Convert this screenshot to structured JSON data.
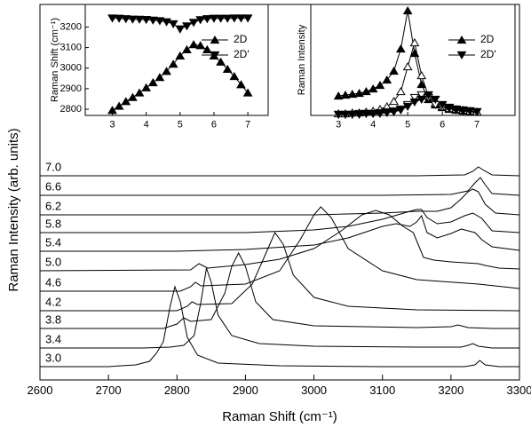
{
  "chart_data": [
    {
      "type": "line",
      "xlabel": "Raman Shift (cm⁻¹)",
      "ylabel": "Raman Intensity (arb. units)",
      "xlim": [
        2600,
        3300
      ],
      "xticks": [
        2600,
        2700,
        2800,
        2900,
        3000,
        3100,
        3200,
        3300
      ],
      "ylim": [
        0,
        423
      ],
      "color": "#000000",
      "series": [
        {
          "name": "3.0",
          "x": [
            2600,
            2700,
            2740,
            2760,
            2770,
            2780,
            2790,
            2797,
            2805,
            2815,
            2830,
            2860,
            2950,
            3100,
            3220,
            3235,
            3242,
            3250,
            3270,
            3300
          ],
          "values": [
            15,
            15,
            17,
            21,
            30,
            43,
            83,
            105,
            88,
            48,
            28,
            19,
            16,
            15,
            15,
            17,
            22,
            17,
            15,
            15
          ]
        },
        {
          "name": "3.4",
          "x": [
            2600,
            2750,
            2790,
            2810,
            2825,
            2835,
            2843,
            2850,
            2860,
            2880,
            2920,
            3000,
            3150,
            3215,
            3225,
            3232,
            3240,
            3260,
            3300
          ],
          "values": [
            36,
            36,
            37,
            39,
            50,
            88,
            126,
            110,
            73,
            50,
            41,
            38,
            37,
            37,
            39,
            41,
            38,
            36,
            36
          ]
        },
        {
          "name": "3.8",
          "x": [
            2600,
            2780,
            2800,
            2810,
            2820,
            2850,
            2870,
            2880,
            2890,
            2900,
            2915,
            2940,
            3000,
            3150,
            3200,
            3210,
            3225,
            3260,
            3300
          ],
          "values": [
            58,
            58,
            63,
            70,
            66,
            68,
            98,
            128,
            143,
            128,
            88,
            68,
            61,
            59,
            60,
            62,
            59,
            58,
            58
          ]
        },
        {
          "name": "4.2",
          "x": [
            2600,
            2800,
            2815,
            2822,
            2830,
            2880,
            2910,
            2930,
            2943,
            2955,
            2970,
            3000,
            3050,
            3150,
            3300
          ],
          "values": [
            78,
            78,
            83,
            88,
            85,
            86,
            108,
            143,
            166,
            153,
            118,
            93,
            83,
            79,
            78
          ]
        },
        {
          "name": "4.6",
          "x": [
            2600,
            2805,
            2820,
            2827,
            2835,
            2900,
            2950,
            2980,
            3000,
            3010,
            3025,
            3050,
            3100,
            3150,
            3240,
            3300
          ],
          "values": [
            100,
            100,
            105,
            110,
            106,
            108,
            123,
            158,
            186,
            195,
            183,
            148,
            123,
            113,
            108,
            103
          ]
        },
        {
          "name": "5.0",
          "x": [
            2600,
            2820,
            2832,
            2845,
            2900,
            2950,
            3000,
            3040,
            3070,
            3090,
            3110,
            3130,
            3145,
            3152,
            3160,
            3175,
            3200,
            3240,
            3250,
            3270,
            3300
          ],
          "values": [
            123,
            124,
            131,
            126,
            130,
            136,
            148,
            168,
            186,
            191,
            186,
            173,
            166,
            153,
            138,
            135,
            133,
            131,
            129,
            126,
            125
          ]
        },
        {
          "name": "5.4",
          "x": [
            2600,
            2800,
            2900,
            3000,
            3050,
            3100,
            3120,
            3140,
            3150,
            3157,
            3165,
            3180,
            3200,
            3215,
            3235,
            3245,
            3260,
            3300
          ],
          "values": [
            145,
            145,
            147,
            152,
            160,
            173,
            176,
            173,
            178,
            185,
            166,
            160,
            165,
            170,
            166,
            158,
            150,
            146
          ]
        },
        {
          "name": "5.8",
          "x": [
            2600,
            2900,
            3000,
            3050,
            3100,
            3140,
            3150,
            3157,
            3165,
            3180,
            3200,
            3220,
            3232,
            3245,
            3260,
            3300
          ],
          "values": [
            166,
            166,
            169,
            173,
            181,
            190,
            192,
            192,
            183,
            176,
            178,
            185,
            188,
            182,
            168,
            166
          ]
        },
        {
          "name": "6.2",
          "x": [
            2600,
            3000,
            3100,
            3150,
            3180,
            3200,
            3215,
            3225,
            3232,
            3240,
            3250,
            3265,
            3300
          ],
          "values": [
            186,
            186,
            188,
            190,
            190,
            194,
            204,
            212,
            215,
            212,
            198,
            188,
            186
          ]
        },
        {
          "name": "6.6",
          "x": [
            2600,
            3100,
            3200,
            3225,
            3235,
            3243,
            3250,
            3260,
            3300
          ],
          "values": [
            208,
            208,
            209,
            213,
            222,
            228,
            220,
            210,
            208
          ]
        },
        {
          "name": "7.0",
          "x": [
            2600,
            3150,
            3220,
            3232,
            3240,
            3248,
            3260,
            3300
          ],
          "values": [
            230,
            230,
            231,
            235,
            240,
            236,
            231,
            230
          ]
        }
      ]
    },
    {
      "type": "line",
      "ylabel": "Raman Shift (cm⁻¹)",
      "xlim": [
        2.2,
        7.6
      ],
      "xticks": [
        3,
        4,
        5,
        6,
        7
      ],
      "ylim": [
        2770,
        3310
      ],
      "yticks": [
        2800,
        2900,
        3000,
        3100,
        3200
      ],
      "legend": "upper right",
      "color": "#000000",
      "x": [
        3,
        3.2,
        3.4,
        3.6,
        3.8,
        4,
        4.2,
        4.4,
        4.6,
        4.8,
        5,
        5.2,
        5.4,
        5.6,
        5.8,
        6,
        6.2,
        6.4,
        6.6,
        6.8,
        7
      ],
      "series": [
        {
          "name": "2D",
          "marker": "triangle-up",
          "filled": true,
          "values": [
            2795,
            2815,
            2838,
            2858,
            2880,
            2905,
            2930,
            2955,
            2985,
            3020,
            3060,
            3090,
            3115,
            3110,
            3090,
            3060,
            3030,
            2995,
            2960,
            2920,
            2880
          ]
        },
        {
          "name": "2D'",
          "marker": "triangle-down",
          "filled": true,
          "values": [
            3243,
            3242,
            3240,
            3238,
            3237,
            3236,
            3233,
            3230,
            3225,
            3215,
            3190,
            3205,
            3222,
            3235,
            3240,
            3242,
            3242,
            3242,
            3243,
            3243,
            3243
          ]
        }
      ]
    },
    {
      "type": "line",
      "ylabel": "Raman Intensity",
      "xlim": [
        2.2,
        8.1
      ],
      "xticks": [
        3,
        4,
        5,
        6,
        7
      ],
      "ylim": [
        0,
        125
      ],
      "legend": "upper right",
      "color": "#000000",
      "x": [
        3,
        3.2,
        3.4,
        3.6,
        3.8,
        4,
        4.2,
        4.4,
        4.6,
        4.8,
        5,
        5.2,
        5.4,
        5.6,
        5.8,
        6,
        6.2,
        6.4,
        6.6,
        6.8,
        7
      ],
      "series": [
        {
          "name": "2D",
          "marker": "triangle-up",
          "filled": true,
          "values": [
            22,
            23,
            24,
            25,
            27,
            30,
            34,
            40,
            50,
            75,
            118,
            70,
            35,
            18,
            12,
            9,
            7,
            6,
            5,
            4,
            4
          ]
        },
        {
          "marker": "triangle-up",
          "filled": false,
          "values": [
            2,
            2,
            3,
            3,
            4,
            5,
            7,
            10,
            16,
            27,
            55,
            82,
            45,
            22,
            14,
            10,
            8,
            7,
            6,
            5,
            4
          ]
        },
        {
          "marker": "triangle-down",
          "filled": false,
          "values": [
            1,
            1,
            1,
            2,
            2,
            2,
            3,
            4,
            5,
            7,
            12,
            20,
            23,
            20,
            12,
            9,
            8,
            6,
            5,
            5,
            4
          ]
        },
        {
          "name": "2D'",
          "marker": "triangle-down",
          "filled": true,
          "values": [
            1,
            1,
            1,
            1,
            2,
            2,
            2,
            3,
            4,
            6,
            10,
            15,
            18,
            23,
            18,
            12,
            9,
            7,
            6,
            5,
            4
          ]
        }
      ]
    }
  ]
}
